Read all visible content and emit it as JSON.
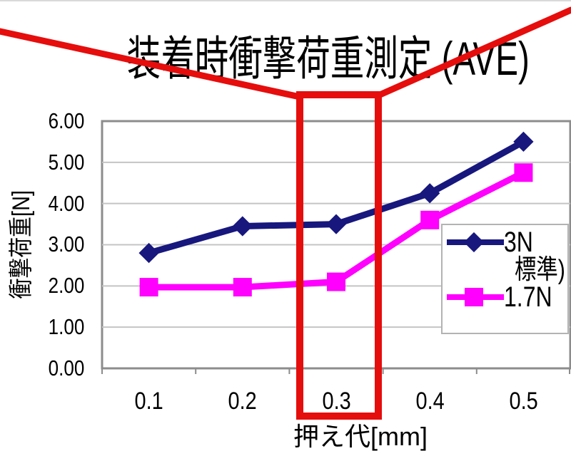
{
  "page": {
    "title": "装着時衝撃荷重測定 (AVE)"
  },
  "colors": {
    "series_3n_navy": "#17177E",
    "series_17n_magenta": "#FF00FF",
    "annotation_red": "#E60D0D",
    "gridline": "#C4C4C4",
    "plot_border": "#8C8C8C",
    "slide_line": "#D9D9D9",
    "legend_border": "#B3B3B3"
  },
  "chart_data": {
    "type": "line",
    "title": "装着時衝撃荷重測定 (AVE)",
    "xlabel": "押え代[mm]",
    "ylabel": "衝撃荷重[N]",
    "categories": [
      "0.1",
      "0.2",
      "0.3",
      "0.4",
      "0.5"
    ],
    "y_tick_labels": [
      "6.00",
      "5.00",
      "4.00",
      "3.00",
      "2.00",
      "1.00",
      "0.00"
    ],
    "y_ticks": [
      6,
      5,
      4,
      3,
      2,
      1,
      0
    ],
    "ylim": [
      0,
      6
    ],
    "grid": true,
    "legend_position": "inside-right",
    "series": [
      {
        "name": "3N",
        "legend_label": "3N",
        "legend_label2": "標準)",
        "marker": "diamond",
        "color": "#17177E",
        "values": [
          2.8,
          3.45,
          3.5,
          4.25,
          5.5
        ]
      },
      {
        "name": "1.7N",
        "legend_label": "1.7N",
        "legend_label2": "",
        "marker": "square",
        "color": "#FF00FF",
        "values": [
          1.97,
          1.97,
          2.1,
          3.6,
          4.75
        ]
      }
    ]
  },
  "annotation": {
    "description": "red callout box highlighting the 0.3 mm column, with leader lines from the top corners",
    "highlighted_category": "0.3",
    "color": "#E60D0D"
  }
}
